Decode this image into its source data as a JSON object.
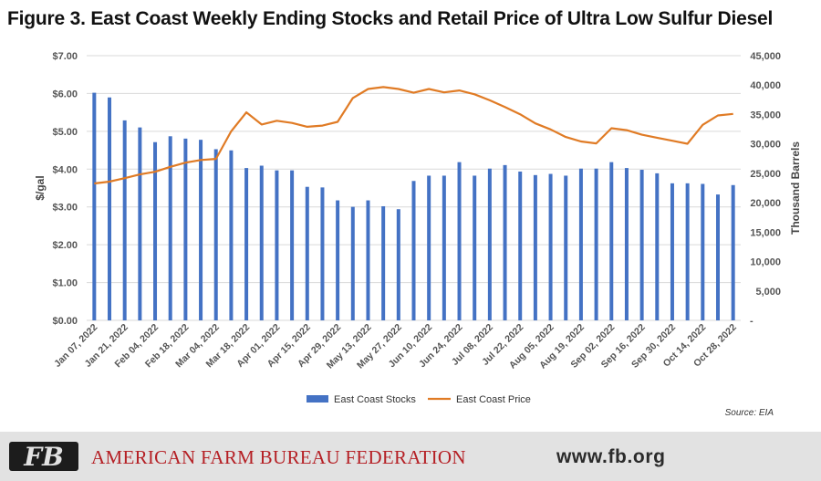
{
  "header": {
    "title": "Figure 3. East Coast Weekly Ending Stocks and Retail Price of Ultra Low Sulfur Diesel"
  },
  "chart_data": {
    "type": "bar",
    "title": "Figure 3. East Coast Weekly Ending Stocks and Retail Price of Ultra Low Sulfur Diesel",
    "ylabel_left": "$/gal",
    "ylabel_right": "Thousand Barrels",
    "y_left_ticks": [
      "$0.00",
      "$1.00",
      "$2.00",
      "$3.00",
      "$4.00",
      "$5.00",
      "$6.00",
      "$7.00"
    ],
    "y_right_ticks": [
      "-",
      "5,000",
      "10,000",
      "15,000",
      "20,000",
      "25,000",
      "30,000",
      "35,000",
      "40,000",
      "45,000"
    ],
    "ylim_left": [
      0,
      7
    ],
    "ylim_right": [
      0,
      45000
    ],
    "x_tick_labels": [
      "Jan 07, 2022",
      "Jan 21, 2022",
      "Feb 04, 2022",
      "Feb 18, 2022",
      "Mar 04, 2022",
      "Mar 18, 2022",
      "Apr 01, 2022",
      "Apr 15, 2022",
      "Apr 29, 2022",
      "May 13, 2022",
      "May 27, 2022",
      "Jun 10, 2022",
      "Jun 24, 2022",
      "Jul 08, 2022",
      "Jul 22, 2022",
      "Aug 05, 2022",
      "Aug 19, 2022",
      "Sep 02, 2022",
      "Sep 16, 2022",
      "Sep 30, 2022",
      "Oct 14, 2022",
      "Oct 28, 2022"
    ],
    "grid": true,
    "legend_position": "bottom",
    "series": [
      {
        "name": "East Coast Stocks",
        "type": "bar",
        "axis": "right",
        "color": "#4472c4",
        "values": [
          38700,
          37900,
          34000,
          32800,
          30300,
          31300,
          30900,
          30700,
          29100,
          28900,
          25900,
          26300,
          25500,
          25500,
          22700,
          22600,
          20400,
          19300,
          20400,
          19400,
          18900,
          23700,
          24600,
          24600,
          26900,
          24600,
          25800,
          26400,
          25300,
          24700,
          24900,
          24600,
          25800,
          25800,
          26900,
          25900,
          25600,
          25000,
          23300,
          23300,
          23200,
          21400,
          23000
        ]
      },
      {
        "name": "East Coast Price",
        "type": "line",
        "axis": "left",
        "color": "#e07b25",
        "values": [
          3.62,
          3.67,
          3.76,
          3.86,
          3.93,
          4.06,
          4.17,
          4.24,
          4.27,
          5.0,
          5.5,
          5.18,
          5.28,
          5.22,
          5.12,
          5.15,
          5.25,
          5.88,
          6.12,
          6.17,
          6.12,
          6.02,
          6.12,
          6.03,
          6.08,
          5.98,
          5.82,
          5.64,
          5.45,
          5.21,
          5.05,
          4.85,
          4.73,
          4.68,
          5.08,
          5.03,
          4.91,
          4.83,
          4.75,
          4.67,
          5.17,
          5.42,
          5.46
        ]
      }
    ]
  },
  "source": "Source: EIA",
  "footer": {
    "logo_text": "FB",
    "organization": "AMERICAN FARM BUREAU FEDERATION",
    "registered": "®",
    "url": "www.fb.org",
    "brand_color": "#b52025"
  }
}
